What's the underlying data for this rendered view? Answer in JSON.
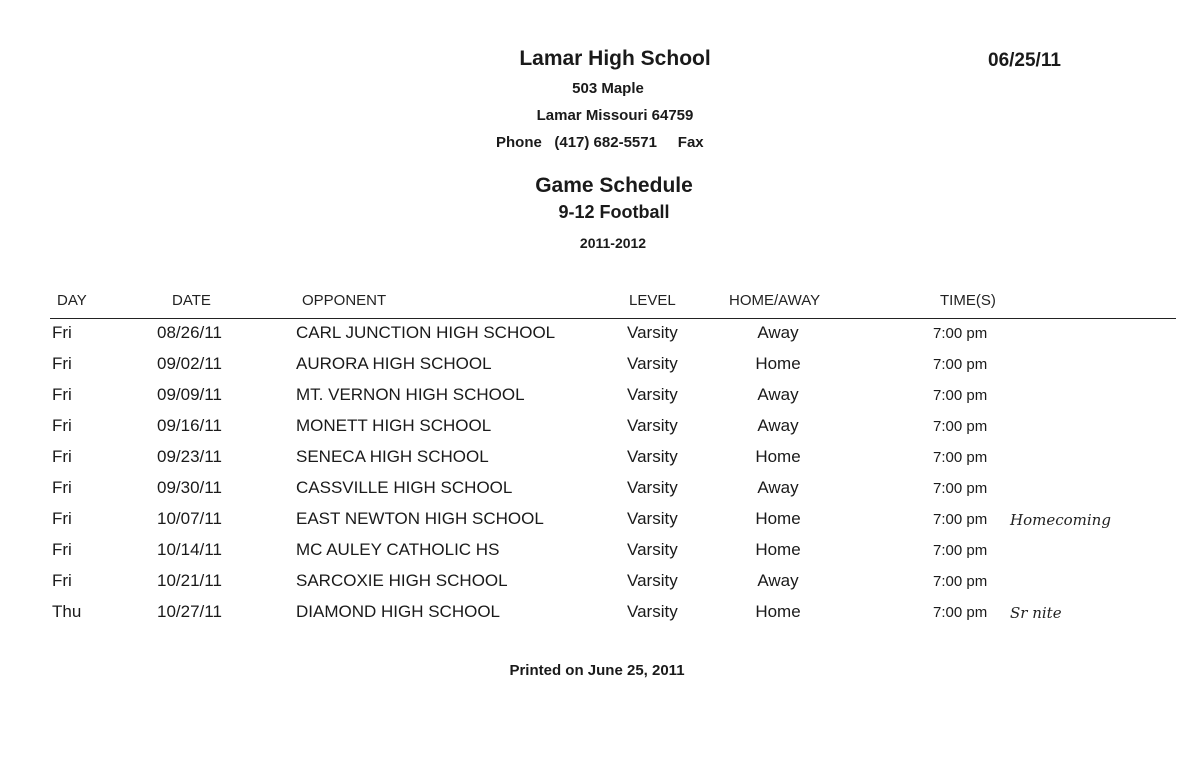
{
  "header": {
    "school": "Lamar High School",
    "address": "503 Maple",
    "city": "Lamar Missouri 64759",
    "phone_label": "Phone",
    "phone": "(417) 682-5571",
    "fax_label": "Fax",
    "date": "06/25/11",
    "title": "Game Schedule",
    "subtitle": "9-12 Football",
    "season": "2011-2012"
  },
  "table": {
    "columns": [
      "DAY",
      "DATE",
      "OPPONENT",
      "LEVEL",
      "HOME/AWAY",
      "TIME(S)"
    ],
    "rows": [
      {
        "day": "Fri",
        "date": "08/26/11",
        "opponent": "CARL JUNCTION HIGH SCHOOL",
        "level": "Varsity",
        "home_away": "Away",
        "time": "7:00 pm",
        "note": ""
      },
      {
        "day": "Fri",
        "date": "09/02/11",
        "opponent": "AURORA HIGH SCHOOL",
        "level": "Varsity",
        "home_away": "Home",
        "time": "7:00 pm",
        "note": ""
      },
      {
        "day": "Fri",
        "date": "09/09/11",
        "opponent": "MT. VERNON HIGH SCHOOL",
        "level": "Varsity",
        "home_away": "Away",
        "time": "7:00 pm",
        "note": ""
      },
      {
        "day": "Fri",
        "date": "09/16/11",
        "opponent": "MONETT HIGH SCHOOL",
        "level": "Varsity",
        "home_away": "Away",
        "time": "7:00 pm",
        "note": ""
      },
      {
        "day": "Fri",
        "date": "09/23/11",
        "opponent": "SENECA HIGH SCHOOL",
        "level": "Varsity",
        "home_away": "Home",
        "time": "7:00 pm",
        "note": ""
      },
      {
        "day": "Fri",
        "date": "09/30/11",
        "opponent": "CASSVILLE HIGH SCHOOL",
        "level": "Varsity",
        "home_away": "Away",
        "time": "7:00 pm",
        "note": ""
      },
      {
        "day": "Fri",
        "date": "10/07/11",
        "opponent": "EAST NEWTON HIGH SCHOOL",
        "level": "Varsity",
        "home_away": "Home",
        "time": "7:00 pm",
        "note": "Homecoming"
      },
      {
        "day": "Fri",
        "date": "10/14/11",
        "opponent": "MC AULEY CATHOLIC HS",
        "level": "Varsity",
        "home_away": "Home",
        "time": "7:00 pm",
        "note": ""
      },
      {
        "day": "Fri",
        "date": "10/21/11",
        "opponent": "SARCOXIE HIGH SCHOOL",
        "level": "Varsity",
        "home_away": "Away",
        "time": "7:00 pm",
        "note": ""
      },
      {
        "day": "Thu",
        "date": "10/27/11",
        "opponent": "DIAMOND HIGH SCHOOL",
        "level": "Varsity",
        "home_away": "Home",
        "time": "7:00 pm",
        "note": "Sr nite"
      }
    ]
  },
  "footer": {
    "printed": "Printed on June 25, 2011"
  }
}
